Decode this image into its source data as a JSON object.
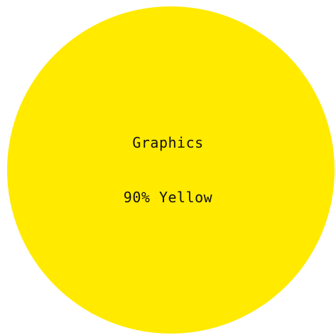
{
  "swatch": {
    "category": "Graphics",
    "value_label": "90% Yellow",
    "color": "#ffea00"
  }
}
